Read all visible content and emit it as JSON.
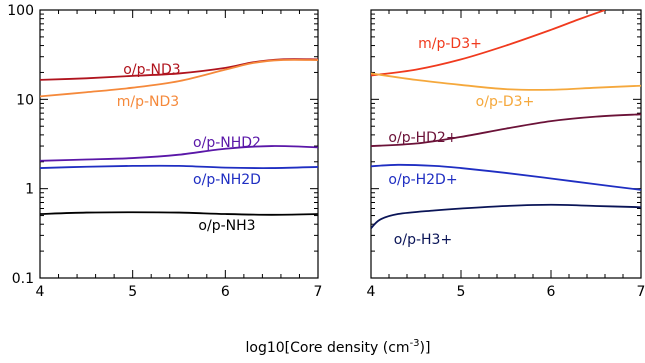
{
  "xlabel": "log10[Core density (cm",
  "xlabel_sup": "-3",
  "xlabel_end": ")]",
  "chart_data": [
    {
      "type": "line",
      "scale": "log",
      "xlim": [
        4,
        7
      ],
      "ylim": [
        0.1,
        100
      ],
      "xticks": [
        "4",
        "5",
        "6",
        "7"
      ],
      "yticks": [
        "0.1",
        "1",
        "10",
        "100"
      ],
      "series": [
        {
          "name": "o/p-ND3",
          "color": "#b0141e",
          "x": [
            4,
            4.5,
            5,
            5.5,
            6,
            6.3,
            6.6,
            7
          ],
          "y": [
            16.5,
            17.2,
            18.3,
            19.5,
            22.5,
            26.0,
            28.0,
            28.0
          ]
        },
        {
          "name": "m/p-ND3",
          "color": "#f5893b",
          "x": [
            4,
            4.5,
            5,
            5.5,
            6,
            6.3,
            6.6,
            7
          ],
          "y": [
            10.8,
            12.0,
            13.5,
            16.0,
            21.5,
            25.5,
            27.5,
            27.5
          ]
        },
        {
          "name": "o/p-NHD2",
          "color": "#5a17a8",
          "x": [
            4,
            4.5,
            5,
            5.5,
            6,
            6.5,
            7
          ],
          "y": [
            2.05,
            2.12,
            2.2,
            2.4,
            2.8,
            3.0,
            2.9
          ]
        },
        {
          "name": "o/p-NH2D",
          "color": "#1f2ec2",
          "x": [
            4,
            4.5,
            5,
            5.5,
            6,
            6.5,
            7
          ],
          "y": [
            1.7,
            1.76,
            1.8,
            1.8,
            1.72,
            1.7,
            1.75
          ]
        },
        {
          "name": "o/p-NH3",
          "color": "#000000",
          "x": [
            4,
            4.5,
            5,
            5.5,
            6,
            6.5,
            7
          ],
          "y": [
            0.52,
            0.54,
            0.545,
            0.54,
            0.52,
            0.51,
            0.52
          ]
        }
      ]
    },
    {
      "type": "line",
      "scale": "log",
      "xlim": [
        4,
        7
      ],
      "ylim": [
        0.1,
        100
      ],
      "xticks": [
        "4",
        "5",
        "6",
        "7"
      ],
      "yticks": [],
      "series": [
        {
          "name": "m/p-D3+",
          "color": "#f03a1e",
          "x": [
            4,
            4.5,
            5,
            5.5,
            6,
            6.3,
            6.6
          ],
          "y": [
            18.5,
            21.5,
            28.0,
            40.0,
            60.0,
            78.0,
            100.0
          ]
        },
        {
          "name": "o/p-D3+",
          "color": "#f5a83c",
          "x": [
            4,
            4.5,
            5,
            5.5,
            6,
            6.5,
            7
          ],
          "y": [
            19.5,
            16.5,
            14.5,
            13.0,
            12.8,
            13.5,
            14.2
          ]
        },
        {
          "name": "o/p-HD2+",
          "color": "#6b1238",
          "x": [
            4,
            4.5,
            5,
            5.5,
            6,
            6.5,
            7
          ],
          "y": [
            3.0,
            3.2,
            3.8,
            4.7,
            5.7,
            6.4,
            6.8
          ]
        },
        {
          "name": "o/p-H2D+",
          "color": "#1f2ec2",
          "x": [
            4,
            4.3,
            4.7,
            5,
            5.5,
            6,
            6.5,
            7
          ],
          "y": [
            1.78,
            1.85,
            1.8,
            1.7,
            1.5,
            1.3,
            1.12,
            0.97
          ]
        },
        {
          "name": "o/p-H3+",
          "color": "#0a1457",
          "x": [
            4,
            4.1,
            4.3,
            4.7,
            5,
            5.5,
            6,
            6.5,
            7
          ],
          "y": [
            0.36,
            0.45,
            0.52,
            0.57,
            0.6,
            0.64,
            0.66,
            0.64,
            0.62
          ]
        }
      ]
    }
  ]
}
